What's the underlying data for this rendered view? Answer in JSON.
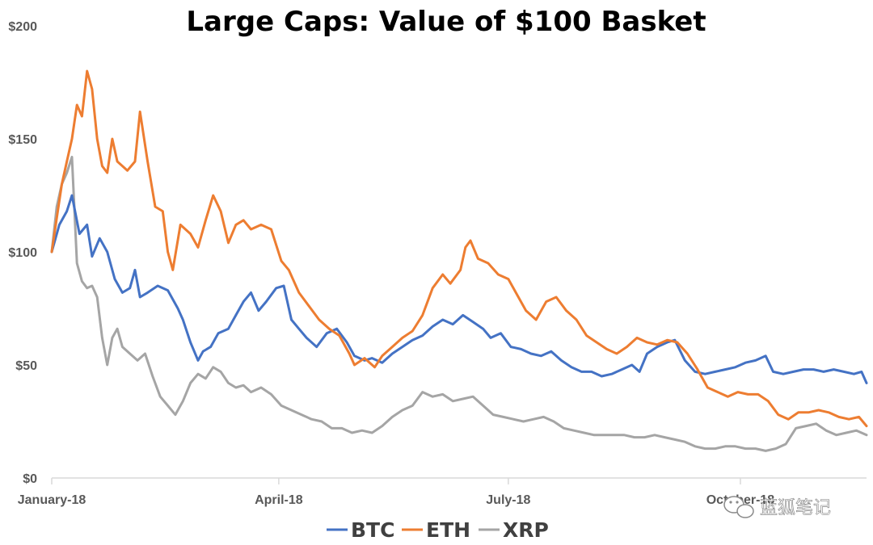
{
  "chart_data": {
    "type": "line",
    "title": "Large Caps: Value of $100 Basket",
    "xlabel": "",
    "ylabel": "",
    "ylim": [
      0,
      200
    ],
    "y_ticks": [
      "$0",
      "$50",
      "$100",
      "$150",
      "$200"
    ],
    "x_ticks": [
      "January-18",
      "April-18",
      "July-18",
      "October-18"
    ],
    "x_range": [
      "2018-01-01",
      "2018-11-20"
    ],
    "legend_position": "bottom",
    "grid": false,
    "series": [
      {
        "name": "BTC",
        "color": "#4472C4",
        "points": [
          [
            "2018-01-01",
            100
          ],
          [
            "2018-01-04",
            112
          ],
          [
            "2018-01-07",
            118
          ],
          [
            "2018-01-09",
            125
          ],
          [
            "2018-01-12",
            108
          ],
          [
            "2018-01-15",
            112
          ],
          [
            "2018-01-17",
            98
          ],
          [
            "2018-01-20",
            106
          ],
          [
            "2018-01-23",
            100
          ],
          [
            "2018-01-26",
            88
          ],
          [
            "2018-01-29",
            82
          ],
          [
            "2018-02-01",
            84
          ],
          [
            "2018-02-03",
            92
          ],
          [
            "2018-02-05",
            80
          ],
          [
            "2018-02-08",
            82
          ],
          [
            "2018-02-12",
            85
          ],
          [
            "2018-02-16",
            83
          ],
          [
            "2018-02-20",
            75
          ],
          [
            "2018-02-22",
            70
          ],
          [
            "2018-02-25",
            60
          ],
          [
            "2018-02-28",
            52
          ],
          [
            "2018-03-02",
            56
          ],
          [
            "2018-03-05",
            58
          ],
          [
            "2018-03-08",
            64
          ],
          [
            "2018-03-12",
            66
          ],
          [
            "2018-03-15",
            72
          ],
          [
            "2018-03-18",
            78
          ],
          [
            "2018-03-21",
            82
          ],
          [
            "2018-03-24",
            74
          ],
          [
            "2018-03-27",
            78
          ],
          [
            "2018-03-31",
            84
          ],
          [
            "2018-04-03",
            85
          ],
          [
            "2018-04-06",
            70
          ],
          [
            "2018-04-09",
            66
          ],
          [
            "2018-04-12",
            62
          ],
          [
            "2018-04-16",
            58
          ],
          [
            "2018-04-20",
            64
          ],
          [
            "2018-04-24",
            66
          ],
          [
            "2018-04-28",
            60
          ],
          [
            "2018-05-01",
            54
          ],
          [
            "2018-05-05",
            52
          ],
          [
            "2018-05-08",
            53
          ],
          [
            "2018-05-12",
            51
          ],
          [
            "2018-05-16",
            55
          ],
          [
            "2018-05-20",
            58
          ],
          [
            "2018-05-24",
            61
          ],
          [
            "2018-05-28",
            63
          ],
          [
            "2018-06-01",
            67
          ],
          [
            "2018-06-05",
            70
          ],
          [
            "2018-06-09",
            68
          ],
          [
            "2018-06-13",
            72
          ],
          [
            "2018-06-17",
            69
          ],
          [
            "2018-06-21",
            66
          ],
          [
            "2018-06-24",
            62
          ],
          [
            "2018-06-28",
            64
          ],
          [
            "2018-07-02",
            58
          ],
          [
            "2018-07-06",
            57
          ],
          [
            "2018-07-10",
            55
          ],
          [
            "2018-07-14",
            54
          ],
          [
            "2018-07-18",
            56
          ],
          [
            "2018-07-22",
            52
          ],
          [
            "2018-07-26",
            49
          ],
          [
            "2018-07-30",
            47
          ],
          [
            "2018-08-03",
            47
          ],
          [
            "2018-08-07",
            45
          ],
          [
            "2018-08-11",
            46
          ],
          [
            "2018-08-15",
            48
          ],
          [
            "2018-08-19",
            50
          ],
          [
            "2018-08-22",
            47
          ],
          [
            "2018-08-25",
            55
          ],
          [
            "2018-08-29",
            58
          ],
          [
            "2018-09-02",
            60
          ],
          [
            "2018-09-05",
            61
          ],
          [
            "2018-09-09",
            52
          ],
          [
            "2018-09-13",
            47
          ],
          [
            "2018-09-17",
            46
          ],
          [
            "2018-09-21",
            47
          ],
          [
            "2018-09-25",
            48
          ],
          [
            "2018-09-29",
            49
          ],
          [
            "2018-10-03",
            51
          ],
          [
            "2018-10-07",
            52
          ],
          [
            "2018-10-11",
            54
          ],
          [
            "2018-10-14",
            47
          ],
          [
            "2018-10-18",
            46
          ],
          [
            "2018-10-22",
            47
          ],
          [
            "2018-10-26",
            48
          ],
          [
            "2018-10-30",
            48
          ],
          [
            "2018-11-03",
            47
          ],
          [
            "2018-11-07",
            48
          ],
          [
            "2018-11-11",
            47
          ],
          [
            "2018-11-15",
            46
          ],
          [
            "2018-11-18",
            47
          ],
          [
            "2018-11-20",
            42
          ]
        ]
      },
      {
        "name": "ETH",
        "color": "#ED7D31",
        "points": [
          [
            "2018-01-01",
            100
          ],
          [
            "2018-01-03",
            115
          ],
          [
            "2018-01-05",
            130
          ],
          [
            "2018-01-07",
            140
          ],
          [
            "2018-01-09",
            150
          ],
          [
            "2018-01-11",
            165
          ],
          [
            "2018-01-13",
            160
          ],
          [
            "2018-01-15",
            180
          ],
          [
            "2018-01-17",
            172
          ],
          [
            "2018-01-19",
            150
          ],
          [
            "2018-01-21",
            138
          ],
          [
            "2018-01-23",
            135
          ],
          [
            "2018-01-25",
            150
          ],
          [
            "2018-01-27",
            140
          ],
          [
            "2018-01-29",
            138
          ],
          [
            "2018-01-31",
            136
          ],
          [
            "2018-02-03",
            140
          ],
          [
            "2018-02-05",
            162
          ],
          [
            "2018-02-08",
            140
          ],
          [
            "2018-02-11",
            120
          ],
          [
            "2018-02-14",
            118
          ],
          [
            "2018-02-16",
            100
          ],
          [
            "2018-02-18",
            92
          ],
          [
            "2018-02-21",
            112
          ],
          [
            "2018-02-25",
            108
          ],
          [
            "2018-02-28",
            102
          ],
          [
            "2018-03-03",
            114
          ],
          [
            "2018-03-06",
            125
          ],
          [
            "2018-03-09",
            118
          ],
          [
            "2018-03-12",
            104
          ],
          [
            "2018-03-15",
            112
          ],
          [
            "2018-03-18",
            114
          ],
          [
            "2018-03-21",
            110
          ],
          [
            "2018-03-25",
            112
          ],
          [
            "2018-03-29",
            110
          ],
          [
            "2018-04-02",
            96
          ],
          [
            "2018-04-05",
            92
          ],
          [
            "2018-04-09",
            82
          ],
          [
            "2018-04-13",
            76
          ],
          [
            "2018-04-17",
            70
          ],
          [
            "2018-04-21",
            66
          ],
          [
            "2018-04-25",
            63
          ],
          [
            "2018-04-29",
            55
          ],
          [
            "2018-05-01",
            50
          ],
          [
            "2018-05-05",
            53
          ],
          [
            "2018-05-09",
            49
          ],
          [
            "2018-05-12",
            54
          ],
          [
            "2018-05-16",
            58
          ],
          [
            "2018-05-20",
            62
          ],
          [
            "2018-05-24",
            65
          ],
          [
            "2018-05-28",
            72
          ],
          [
            "2018-06-01",
            84
          ],
          [
            "2018-06-05",
            90
          ],
          [
            "2018-06-08",
            86
          ],
          [
            "2018-06-12",
            92
          ],
          [
            "2018-06-14",
            102
          ],
          [
            "2018-06-16",
            105
          ],
          [
            "2018-06-19",
            97
          ],
          [
            "2018-06-23",
            95
          ],
          [
            "2018-06-27",
            90
          ],
          [
            "2018-07-01",
            88
          ],
          [
            "2018-07-04",
            82
          ],
          [
            "2018-07-08",
            74
          ],
          [
            "2018-07-12",
            70
          ],
          [
            "2018-07-16",
            78
          ],
          [
            "2018-07-20",
            80
          ],
          [
            "2018-07-24",
            74
          ],
          [
            "2018-07-28",
            70
          ],
          [
            "2018-08-01",
            63
          ],
          [
            "2018-08-05",
            60
          ],
          [
            "2018-08-09",
            57
          ],
          [
            "2018-08-13",
            55
          ],
          [
            "2018-08-17",
            58
          ],
          [
            "2018-08-21",
            62
          ],
          [
            "2018-08-25",
            60
          ],
          [
            "2018-08-29",
            59
          ],
          [
            "2018-09-02",
            61
          ],
          [
            "2018-09-06",
            60
          ],
          [
            "2018-09-10",
            55
          ],
          [
            "2018-09-14",
            48
          ],
          [
            "2018-09-18",
            40
          ],
          [
            "2018-09-22",
            38
          ],
          [
            "2018-09-26",
            36
          ],
          [
            "2018-09-30",
            38
          ],
          [
            "2018-10-04",
            37
          ],
          [
            "2018-10-08",
            37
          ],
          [
            "2018-10-12",
            34
          ],
          [
            "2018-10-16",
            28
          ],
          [
            "2018-10-20",
            26
          ],
          [
            "2018-10-24",
            29
          ],
          [
            "2018-10-28",
            29
          ],
          [
            "2018-11-01",
            30
          ],
          [
            "2018-11-05",
            29
          ],
          [
            "2018-11-09",
            27
          ],
          [
            "2018-11-13",
            26
          ],
          [
            "2018-11-17",
            27
          ],
          [
            "2018-11-20",
            23
          ]
        ]
      },
      {
        "name": "XRP",
        "color": "#A5A5A5",
        "points": [
          [
            "2018-01-01",
            100
          ],
          [
            "2018-01-03",
            120
          ],
          [
            "2018-01-05",
            130
          ],
          [
            "2018-01-07",
            135
          ],
          [
            "2018-01-09",
            142
          ],
          [
            "2018-01-11",
            95
          ],
          [
            "2018-01-13",
            87
          ],
          [
            "2018-01-15",
            84
          ],
          [
            "2018-01-17",
            85
          ],
          [
            "2018-01-19",
            80
          ],
          [
            "2018-01-21",
            62
          ],
          [
            "2018-01-23",
            50
          ],
          [
            "2018-01-25",
            62
          ],
          [
            "2018-01-27",
            66
          ],
          [
            "2018-01-29",
            58
          ],
          [
            "2018-02-01",
            55
          ],
          [
            "2018-02-04",
            52
          ],
          [
            "2018-02-07",
            55
          ],
          [
            "2018-02-10",
            45
          ],
          [
            "2018-02-13",
            36
          ],
          [
            "2018-02-16",
            32
          ],
          [
            "2018-02-19",
            28
          ],
          [
            "2018-02-22",
            34
          ],
          [
            "2018-02-25",
            42
          ],
          [
            "2018-02-28",
            46
          ],
          [
            "2018-03-03",
            44
          ],
          [
            "2018-03-06",
            49
          ],
          [
            "2018-03-09",
            47
          ],
          [
            "2018-03-12",
            42
          ],
          [
            "2018-03-15",
            40
          ],
          [
            "2018-03-18",
            41
          ],
          [
            "2018-03-21",
            38
          ],
          [
            "2018-03-25",
            40
          ],
          [
            "2018-03-29",
            37
          ],
          [
            "2018-04-02",
            32
          ],
          [
            "2018-04-06",
            30
          ],
          [
            "2018-04-10",
            28
          ],
          [
            "2018-04-14",
            26
          ],
          [
            "2018-04-18",
            25
          ],
          [
            "2018-04-22",
            22
          ],
          [
            "2018-04-26",
            22
          ],
          [
            "2018-04-30",
            20
          ],
          [
            "2018-05-04",
            21
          ],
          [
            "2018-05-08",
            20
          ],
          [
            "2018-05-12",
            23
          ],
          [
            "2018-05-16",
            27
          ],
          [
            "2018-05-20",
            30
          ],
          [
            "2018-05-24",
            32
          ],
          [
            "2018-05-28",
            38
          ],
          [
            "2018-06-01",
            36
          ],
          [
            "2018-06-05",
            37
          ],
          [
            "2018-06-09",
            34
          ],
          [
            "2018-06-13",
            35
          ],
          [
            "2018-06-17",
            36
          ],
          [
            "2018-06-21",
            32
          ],
          [
            "2018-06-25",
            28
          ],
          [
            "2018-06-29",
            27
          ],
          [
            "2018-07-03",
            26
          ],
          [
            "2018-07-07",
            25
          ],
          [
            "2018-07-11",
            26
          ],
          [
            "2018-07-15",
            27
          ],
          [
            "2018-07-19",
            25
          ],
          [
            "2018-07-23",
            22
          ],
          [
            "2018-07-27",
            21
          ],
          [
            "2018-07-31",
            20
          ],
          [
            "2018-08-04",
            19
          ],
          [
            "2018-08-08",
            19
          ],
          [
            "2018-08-12",
            19
          ],
          [
            "2018-08-16",
            19
          ],
          [
            "2018-08-20",
            18
          ],
          [
            "2018-08-24",
            18
          ],
          [
            "2018-08-28",
            19
          ],
          [
            "2018-09-01",
            18
          ],
          [
            "2018-09-05",
            17
          ],
          [
            "2018-09-09",
            16
          ],
          [
            "2018-09-13",
            14
          ],
          [
            "2018-09-17",
            13
          ],
          [
            "2018-09-21",
            13
          ],
          [
            "2018-09-25",
            14
          ],
          [
            "2018-09-29",
            14
          ],
          [
            "2018-10-03",
            13
          ],
          [
            "2018-10-07",
            13
          ],
          [
            "2018-10-11",
            12
          ],
          [
            "2018-10-15",
            13
          ],
          [
            "2018-10-19",
            15
          ],
          [
            "2018-10-23",
            22
          ],
          [
            "2018-10-27",
            23
          ],
          [
            "2018-10-31",
            24
          ],
          [
            "2018-11-04",
            21
          ],
          [
            "2018-11-08",
            19
          ],
          [
            "2018-11-12",
            20
          ],
          [
            "2018-11-16",
            21
          ],
          [
            "2018-11-20",
            19
          ]
        ]
      }
    ]
  },
  "watermark": {
    "icon": "wechat-icon",
    "text": "蓝狐笔记"
  }
}
